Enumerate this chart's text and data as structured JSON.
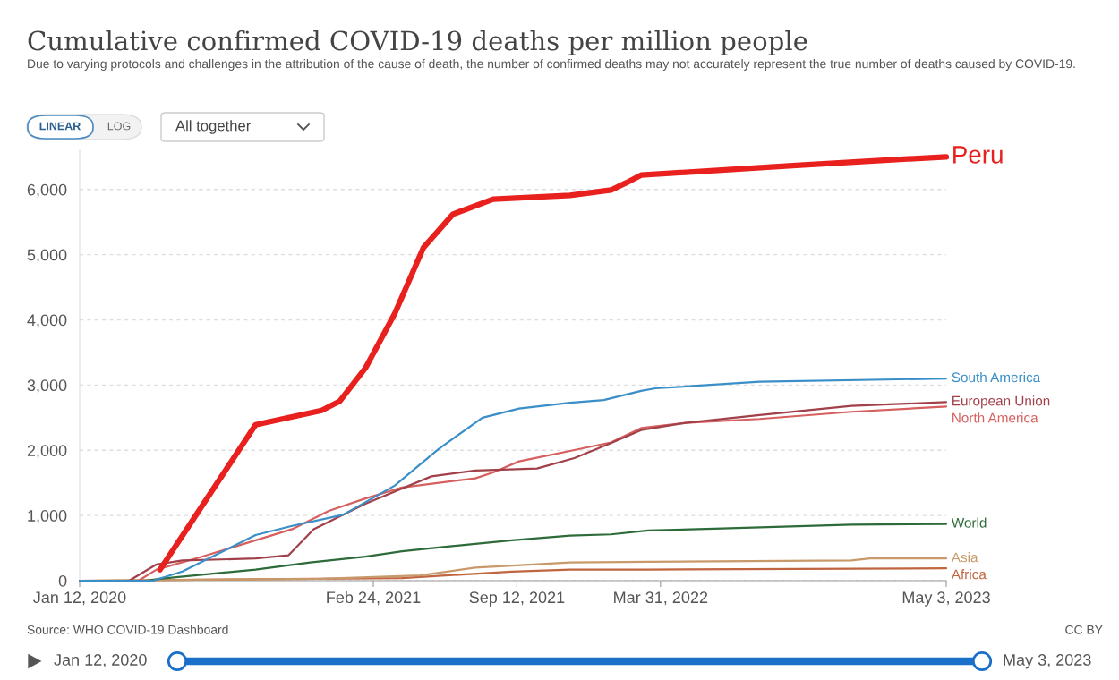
{
  "chart_data": {
    "type": "line",
    "title": "Cumulative confirmed COVID-19 deaths per million people",
    "subtitle": "Due to varying protocols and challenges in the attribution of the cause of death, the number of confirmed deaths may not accurately represent the true number of deaths caused by COVID-19.",
    "annotations": [
      "Source: WHO COVID-19 Dashboard",
      "CC BY",
      "LINEAR",
      "LOG",
      "All together",
      "Jan 12, 2020",
      "May 3, 2023"
    ],
    "xlim": [
      "2020-01-12",
      "2023-05-03"
    ],
    "xticks": [
      {
        "value": "2020-01-12",
        "label": "Jan 12, 2020"
      },
      {
        "value": "2021-02-24",
        "label": "Feb 24, 2021"
      },
      {
        "value": "2021-09-12",
        "label": "Sep 12, 2021"
      },
      {
        "value": "2022-03-31",
        "label": "Mar 31, 2022"
      },
      {
        "value": "2023-05-03",
        "label": "May 3, 2023"
      }
    ],
    "ylim": [
      0,
      6600
    ],
    "yticks": [
      0,
      {
        "value": 1000,
        "label": "1,000"
      },
      {
        "value": 2000,
        "label": "2,000"
      },
      {
        "value": 3000,
        "label": "3,000"
      },
      {
        "value": 4000,
        "label": "4,000"
      },
      {
        "value": 5000,
        "label": "5,000"
      },
      {
        "value": 6000,
        "label": "6,000"
      }
    ],
    "grid": "y",
    "legend": false,
    "marker": "none",
    "line_style": "solid",
    "series": [
      {
        "name": "Peru",
        "color": "#e8201e",
        "x": [
          "2020-05-03",
          "2020-09-13",
          "2020-12-14",
          "2021-01-08",
          "2021-02-13",
          "2021-03-26",
          "2021-05-05",
          "2021-06-15",
          "2021-08-10",
          "2021-11-25",
          "2022-01-21",
          "2022-02-11",
          "2022-03-04",
          "2022-10-06",
          "2023-05-03"
        ],
        "values": [
          170,
          2390,
          2610,
          2750,
          3260,
          4100,
          5110,
          5620,
          5850,
          5910,
          5990,
          6100,
          6220,
          6370,
          6500
        ]
      },
      {
        "name": "South America",
        "color": "#3a8fc8",
        "x": [
          "2020-01-12",
          "2020-04-23",
          "2020-06-03",
          "2020-09-13",
          "2020-11-03",
          "2021-01-13",
          "2021-03-26",
          "2021-05-26",
          "2021-07-26",
          "2021-09-15",
          "2021-11-25",
          "2022-01-11",
          "2022-03-04",
          "2022-03-24",
          "2022-08-16",
          "2023-05-03"
        ],
        "values": [
          0,
          0,
          140,
          700,
          840,
          1010,
          1460,
          2020,
          2500,
          2640,
          2730,
          2770,
          2910,
          2950,
          3050,
          3100
        ]
      },
      {
        "name": "European Union",
        "color": "#a2404a",
        "x": [
          "2020-01-12",
          "2020-03-21",
          "2020-04-28",
          "2020-06-03",
          "2020-09-13",
          "2020-10-29",
          "2020-12-03",
          "2021-02-13",
          "2021-05-16",
          "2021-07-16",
          "2021-10-10",
          "2021-12-01",
          "2022-01-21",
          "2022-03-04",
          "2022-05-05",
          "2022-08-16",
          "2022-12-22",
          "2023-05-03"
        ],
        "values": [
          0,
          0,
          250,
          310,
          340,
          390,
          790,
          1180,
          1600,
          1690,
          1720,
          1880,
          2110,
          2310,
          2420,
          2540,
          2680,
          2740
        ]
      },
      {
        "name": "North America",
        "color": "#d65f5f",
        "x": [
          "2020-01-12",
          "2020-04-03",
          "2020-04-28",
          "2020-06-28",
          "2020-09-13",
          "2020-11-03",
          "2020-12-24",
          "2021-02-13",
          "2021-04-05",
          "2021-07-16",
          "2021-08-10",
          "2021-09-15",
          "2021-11-25",
          "2022-01-21",
          "2022-03-04",
          "2022-05-05",
          "2022-08-16",
          "2022-12-22",
          "2023-05-03"
        ],
        "values": [
          0,
          0,
          170,
          360,
          620,
          790,
          1070,
          1260,
          1430,
          1570,
          1660,
          1830,
          1990,
          2120,
          2340,
          2420,
          2480,
          2590,
          2670
        ]
      },
      {
        "name": "World",
        "color": "#2e6b3a",
        "x": [
          "2020-01-12",
          "2020-04-13",
          "2020-05-03",
          "2020-09-13",
          "2020-11-28",
          "2021-02-13",
          "2021-04-05",
          "2021-05-26",
          "2021-09-05",
          "2021-11-25",
          "2022-01-21",
          "2022-03-14",
          "2022-06-25",
          "2022-12-22",
          "2023-05-03"
        ],
        "values": [
          0,
          0,
          30,
          170,
          280,
          370,
          450,
          510,
          620,
          690,
          710,
          770,
          800,
          860,
          870
        ]
      },
      {
        "name": "Asia",
        "color": "#c89a6b",
        "x": [
          "2020-01-12",
          "2020-12-14",
          "2021-04-30",
          "2021-07-16",
          "2021-11-25",
          "2022-03-14",
          "2022-12-22",
          "2023-01-17",
          "2023-05-03"
        ],
        "values": [
          0,
          30,
          80,
          200,
          280,
          290,
          310,
          340,
          340
        ]
      },
      {
        "name": "Africa",
        "color": "#c0653f",
        "x": [
          "2020-01-12",
          "2021-04-05",
          "2021-09-05",
          "2021-11-25",
          "2022-03-14",
          "2023-05-03"
        ],
        "values": [
          0,
          40,
          140,
          170,
          170,
          190
        ]
      }
    ]
  }
}
